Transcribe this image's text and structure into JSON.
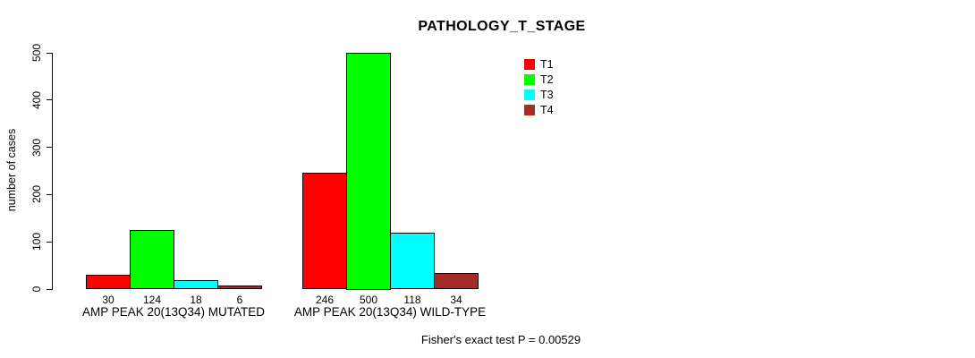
{
  "chart_data": {
    "type": "bar",
    "title": "PATHOLOGY_T_STAGE",
    "ylabel": "number of cases",
    "xlabel": "",
    "ylim": [
      0,
      500
    ],
    "yticks": [
      0,
      100,
      200,
      300,
      400,
      500
    ],
    "grid": false,
    "legend_position": "top-right",
    "categories": [
      "AMP PEAK 20(13Q34) MUTATED",
      "AMP PEAK 20(13Q34) WILD-TYPE"
    ],
    "series": [
      {
        "name": "T1",
        "color": "#FF0000",
        "values": [
          30,
          246
        ]
      },
      {
        "name": "T2",
        "color": "#00FF00",
        "values": [
          124,
          500
        ]
      },
      {
        "name": "T3",
        "color": "#00FFFF",
        "values": [
          18,
          118
        ]
      },
      {
        "name": "T4",
        "color": "#A52A2A",
        "values": [
          6,
          34
        ]
      }
    ],
    "bar_value_labels": [
      [
        30,
        124,
        18,
        6
      ],
      [
        246,
        500,
        118,
        34
      ]
    ],
    "footnote": "Fisher's exact test P = 0.00529"
  }
}
